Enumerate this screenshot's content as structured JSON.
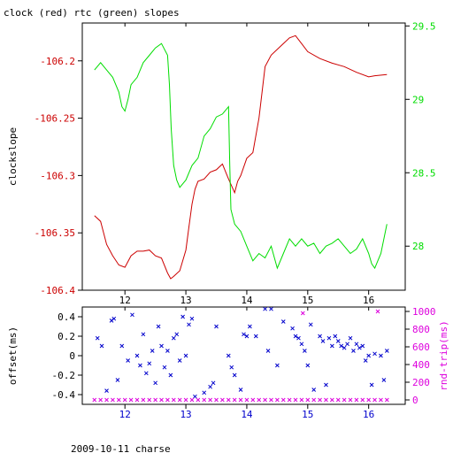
{
  "title": "clock (red) rtc (green) slopes",
  "footer": "2009-10-11 charse",
  "colors": {
    "red": "#cc0000",
    "green": "#00dd00",
    "blue": "#0000cc",
    "magenta": "#dd00dd",
    "axis": "#000000"
  },
  "chart_data": [
    {
      "type": "line",
      "ylabel": "clockslope",
      "y2label": "",
      "xlim": [
        11.3,
        16.6
      ],
      "ylim": [
        -106.4,
        -106.167
      ],
      "y2lim": [
        27.7,
        29.52
      ],
      "x_ticks": [
        12,
        13,
        14,
        15,
        16
      ],
      "x_tick_labels": [
        "12",
        "13",
        "14",
        "15",
        "16"
      ],
      "y_ticks": [
        -106.2,
        -106.25,
        -106.3,
        -106.35,
        -106.4
      ],
      "y_tick_labels": [
        "-106.2",
        "-106.25",
        "-106.3",
        "-106.35",
        "-106.4"
      ],
      "y2_ticks": [
        29.5,
        29,
        28.5,
        28
      ],
      "y2_tick_labels": [
        "29.5",
        "29",
        "28.5",
        "28"
      ],
      "series": [
        {
          "name": "clock",
          "axis": "left",
          "color": "#cc0000",
          "points": [
            [
              11.5,
              -106.335
            ],
            [
              11.6,
              -106.34
            ],
            [
              11.7,
              -106.36
            ],
            [
              11.8,
              -106.37
            ],
            [
              11.9,
              -106.378
            ],
            [
              12.0,
              -106.38
            ],
            [
              12.1,
              -106.37
            ],
            [
              12.2,
              -106.366
            ],
            [
              12.3,
              -106.366
            ],
            [
              12.4,
              -106.365
            ],
            [
              12.5,
              -106.37
            ],
            [
              12.6,
              -106.372
            ],
            [
              12.7,
              -106.385
            ],
            [
              12.75,
              -106.39
            ],
            [
              12.8,
              -106.388
            ],
            [
              12.9,
              -106.383
            ],
            [
              13.0,
              -106.365
            ],
            [
              13.05,
              -106.345
            ],
            [
              13.1,
              -106.325
            ],
            [
              13.15,
              -106.312
            ],
            [
              13.2,
              -106.305
            ],
            [
              13.3,
              -106.303
            ],
            [
              13.4,
              -106.297
            ],
            [
              13.5,
              -106.295
            ],
            [
              13.6,
              -106.29
            ],
            [
              13.7,
              -106.303
            ],
            [
              13.8,
              -106.315
            ],
            [
              13.85,
              -106.305
            ],
            [
              13.9,
              -106.3
            ],
            [
              14.0,
              -106.285
            ],
            [
              14.1,
              -106.28
            ],
            [
              14.2,
              -106.25
            ],
            [
              14.3,
              -106.205
            ],
            [
              14.4,
              -106.195
            ],
            [
              14.5,
              -106.19
            ],
            [
              14.6,
              -106.185
            ],
            [
              14.7,
              -106.18
            ],
            [
              14.8,
              -106.178
            ],
            [
              14.9,
              -106.185
            ],
            [
              15.0,
              -106.192
            ],
            [
              15.2,
              -106.198
            ],
            [
              15.4,
              -106.202
            ],
            [
              15.6,
              -106.205
            ],
            [
              15.8,
              -106.21
            ],
            [
              16.0,
              -106.214
            ],
            [
              16.1,
              -106.213
            ],
            [
              16.3,
              -106.212
            ]
          ]
        },
        {
          "name": "rtc",
          "axis": "right",
          "color": "#00dd00",
          "points": [
            [
              11.5,
              29.2
            ],
            [
              11.6,
              29.25
            ],
            [
              11.7,
              29.2
            ],
            [
              11.8,
              29.15
            ],
            [
              11.9,
              29.05
            ],
            [
              11.95,
              28.95
            ],
            [
              12.0,
              28.92
            ],
            [
              12.05,
              29.0
            ],
            [
              12.1,
              29.1
            ],
            [
              12.2,
              29.15
            ],
            [
              12.3,
              29.25
            ],
            [
              12.4,
              29.3
            ],
            [
              12.5,
              29.35
            ],
            [
              12.6,
              29.38
            ],
            [
              12.7,
              29.3
            ],
            [
              12.73,
              29.1
            ],
            [
              12.76,
              28.8
            ],
            [
              12.8,
              28.55
            ],
            [
              12.85,
              28.45
            ],
            [
              12.9,
              28.4
            ],
            [
              13.0,
              28.45
            ],
            [
              13.1,
              28.55
            ],
            [
              13.2,
              28.6
            ],
            [
              13.3,
              28.75
            ],
            [
              13.4,
              28.8
            ],
            [
              13.5,
              28.88
            ],
            [
              13.6,
              28.9
            ],
            [
              13.7,
              28.95
            ],
            [
              13.72,
              28.55
            ],
            [
              13.74,
              28.25
            ],
            [
              13.8,
              28.15
            ],
            [
              13.9,
              28.1
            ],
            [
              14.0,
              28.0
            ],
            [
              14.1,
              27.9
            ],
            [
              14.2,
              27.95
            ],
            [
              14.3,
              27.92
            ],
            [
              14.4,
              28.0
            ],
            [
              14.5,
              27.85
            ],
            [
              14.6,
              27.95
            ],
            [
              14.7,
              28.05
            ],
            [
              14.8,
              28.0
            ],
            [
              14.9,
              28.05
            ],
            [
              15.0,
              28.0
            ],
            [
              15.1,
              28.02
            ],
            [
              15.2,
              27.95
            ],
            [
              15.3,
              28.0
            ],
            [
              15.4,
              28.02
            ],
            [
              15.5,
              28.05
            ],
            [
              15.6,
              28.0
            ],
            [
              15.7,
              27.95
            ],
            [
              15.8,
              27.98
            ],
            [
              15.9,
              28.05
            ],
            [
              16.0,
              27.95
            ],
            [
              16.05,
              27.88
            ],
            [
              16.1,
              27.85
            ],
            [
              16.15,
              27.9
            ],
            [
              16.2,
              27.95
            ],
            [
              16.25,
              28.05
            ],
            [
              16.3,
              28.15
            ]
          ]
        }
      ]
    },
    {
      "type": "scatter",
      "ylabel": "offset(ms)",
      "y2label": "rnd-trip(ms)",
      "xlim": [
        11.3,
        16.6
      ],
      "ylim": [
        -0.5,
        0.5
      ],
      "y2lim": [
        -50,
        1050
      ],
      "x_ticks": [
        12,
        13,
        14,
        15,
        16
      ],
      "x_tick_labels": [
        "12",
        "13",
        "14",
        "15",
        "16"
      ],
      "y_ticks": [
        0.4,
        0.2,
        0,
        -0.2,
        -0.4
      ],
      "y_tick_labels": [
        "0.4",
        "0.2",
        "0",
        "-0.2",
        "-0.4"
      ],
      "y2_ticks": [
        1000,
        800,
        600,
        400,
        200,
        0
      ],
      "y2_tick_labels": [
        "1000",
        "800",
        "600",
        "400",
        "200",
        "0"
      ],
      "series": [
        {
          "name": "offset",
          "axis": "left",
          "marker": "x",
          "color": "#0000cc",
          "points": [
            [
              11.55,
              0.18
            ],
            [
              11.62,
              0.1
            ],
            [
              11.7,
              -0.36
            ],
            [
              11.78,
              0.36
            ],
            [
              11.82,
              0.38
            ],
            [
              11.88,
              -0.25
            ],
            [
              11.95,
              0.1
            ],
            [
              12.05,
              -0.05
            ],
            [
              12.12,
              0.42
            ],
            [
              12.2,
              0.0
            ],
            [
              12.25,
              -0.1
            ],
            [
              12.3,
              0.22
            ],
            [
              12.35,
              -0.18
            ],
            [
              12.4,
              -0.08
            ],
            [
              12.45,
              0.05
            ],
            [
              12.5,
              -0.28
            ],
            [
              12.55,
              0.3
            ],
            [
              12.6,
              0.1
            ],
            [
              12.65,
              -0.12
            ],
            [
              12.7,
              0.05
            ],
            [
              12.75,
              -0.2
            ],
            [
              12.8,
              0.18
            ],
            [
              12.85,
              0.22
            ],
            [
              12.9,
              -0.05
            ],
            [
              12.95,
              0.4
            ],
            [
              13.0,
              0.0
            ],
            [
              13.05,
              0.32
            ],
            [
              13.1,
              0.38
            ],
            [
              13.15,
              -0.42
            ],
            [
              13.3,
              -0.38
            ],
            [
              13.4,
              -0.32
            ],
            [
              13.45,
              -0.28
            ],
            [
              13.5,
              0.3
            ],
            [
              13.7,
              0.0
            ],
            [
              13.75,
              -0.12
            ],
            [
              13.8,
              -0.2
            ],
            [
              13.9,
              -0.35
            ],
            [
              13.95,
              0.22
            ],
            [
              14.0,
              0.2
            ],
            [
              14.05,
              0.3
            ],
            [
              14.15,
              0.2
            ],
            [
              14.3,
              0.48
            ],
            [
              14.35,
              0.05
            ],
            [
              14.4,
              0.48
            ],
            [
              14.5,
              -0.1
            ],
            [
              14.6,
              0.35
            ],
            [
              14.75,
              0.28
            ],
            [
              14.8,
              0.2
            ],
            [
              14.85,
              0.18
            ],
            [
              14.9,
              0.12
            ],
            [
              14.95,
              0.05
            ],
            [
              15.0,
              -0.1
            ],
            [
              15.05,
              0.32
            ],
            [
              15.1,
              -0.35
            ],
            [
              15.2,
              0.2
            ],
            [
              15.25,
              0.15
            ],
            [
              15.3,
              -0.3
            ],
            [
              15.35,
              0.18
            ],
            [
              15.4,
              0.1
            ],
            [
              15.45,
              0.2
            ],
            [
              15.5,
              0.15
            ],
            [
              15.55,
              0.1
            ],
            [
              15.6,
              0.08
            ],
            [
              15.65,
              0.12
            ],
            [
              15.7,
              0.18
            ],
            [
              15.75,
              0.05
            ],
            [
              15.8,
              0.12
            ],
            [
              15.85,
              0.08
            ],
            [
              15.9,
              0.1
            ],
            [
              15.95,
              -0.05
            ],
            [
              16.0,
              0.0
            ],
            [
              16.05,
              -0.3
            ],
            [
              16.1,
              0.02
            ],
            [
              16.2,
              0.0
            ],
            [
              16.25,
              -0.25
            ],
            [
              16.3,
              0.05
            ]
          ]
        },
        {
          "name": "rnd-trip",
          "axis": "right",
          "marker": "x",
          "color": "#dd00dd",
          "points": [
            [
              11.5,
              0
            ],
            [
              11.6,
              0
            ],
            [
              11.7,
              0
            ],
            [
              11.8,
              0
            ],
            [
              11.9,
              0
            ],
            [
              12.0,
              0
            ],
            [
              12.1,
              0
            ],
            [
              12.2,
              0
            ],
            [
              12.3,
              0
            ],
            [
              12.4,
              0
            ],
            [
              12.5,
              0
            ],
            [
              12.6,
              0
            ],
            [
              12.7,
              0
            ],
            [
              12.8,
              0
            ],
            [
              12.9,
              0
            ],
            [
              13.0,
              0
            ],
            [
              13.1,
              0
            ],
            [
              13.2,
              0
            ],
            [
              13.3,
              0
            ],
            [
              13.4,
              0
            ],
            [
              13.5,
              0
            ],
            [
              13.6,
              0
            ],
            [
              13.7,
              0
            ],
            [
              13.8,
              0
            ],
            [
              13.9,
              0
            ],
            [
              14.0,
              0
            ],
            [
              14.1,
              0
            ],
            [
              14.2,
              0
            ],
            [
              14.3,
              0
            ],
            [
              14.4,
              0
            ],
            [
              14.5,
              0
            ],
            [
              14.6,
              0
            ],
            [
              14.7,
              0
            ],
            [
              14.8,
              0
            ],
            [
              14.9,
              0
            ],
            [
              14.92,
              980
            ],
            [
              15.0,
              0
            ],
            [
              15.1,
              0
            ],
            [
              15.2,
              0
            ],
            [
              15.3,
              0
            ],
            [
              15.4,
              0
            ],
            [
              15.5,
              0
            ],
            [
              15.6,
              0
            ],
            [
              15.7,
              0
            ],
            [
              15.8,
              0
            ],
            [
              15.9,
              0
            ],
            [
              16.0,
              0
            ],
            [
              16.1,
              0
            ],
            [
              16.15,
              1000
            ],
            [
              16.2,
              0
            ],
            [
              16.3,
              0
            ]
          ]
        }
      ]
    }
  ]
}
